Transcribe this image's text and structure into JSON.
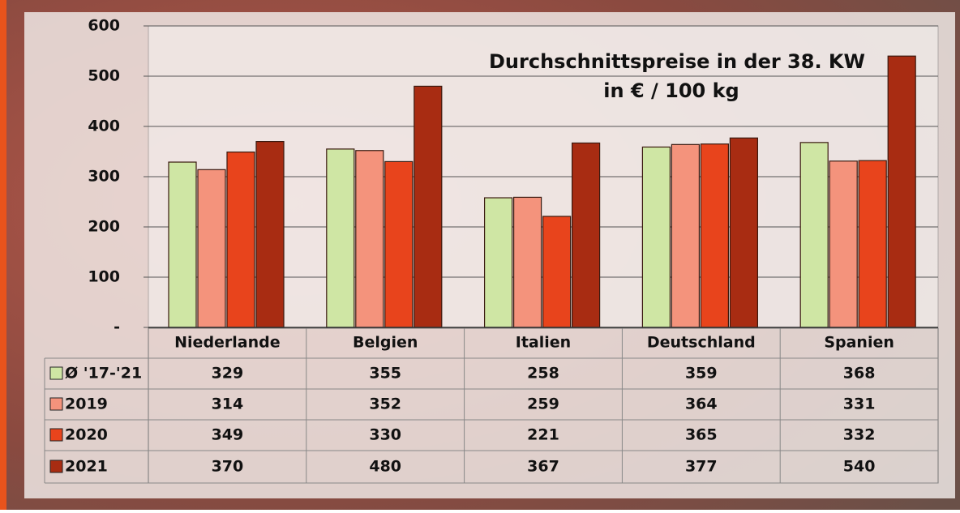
{
  "chart_data": {
    "type": "bar",
    "title": "Durchschnittspreise in der 38. KW",
    "subtitle": "in € / 100 kg",
    "categories": [
      "Niederlande",
      "Belgien",
      "Italien",
      "Deutschland",
      "Spanien"
    ],
    "series": [
      {
        "name": "Ø '17-'21",
        "color": "#cfe6a4",
        "values": [
          329,
          355,
          258,
          359,
          368
        ]
      },
      {
        "name": "2019",
        "color": "#f4937c",
        "values": [
          314,
          352,
          259,
          364,
          331
        ]
      },
      {
        "name": "2020",
        "color": "#e8441c",
        "values": [
          349,
          330,
          221,
          365,
          332
        ]
      },
      {
        "name": "2021",
        "color": "#a82c12",
        "values": [
          370,
          480,
          367,
          377,
          540
        ]
      }
    ],
    "ylim": [
      0,
      600
    ],
    "yticks": [
      {
        "value": 0,
        "label": "-"
      },
      100,
      200,
      300,
      400,
      500,
      600
    ],
    "grid": true
  }
}
